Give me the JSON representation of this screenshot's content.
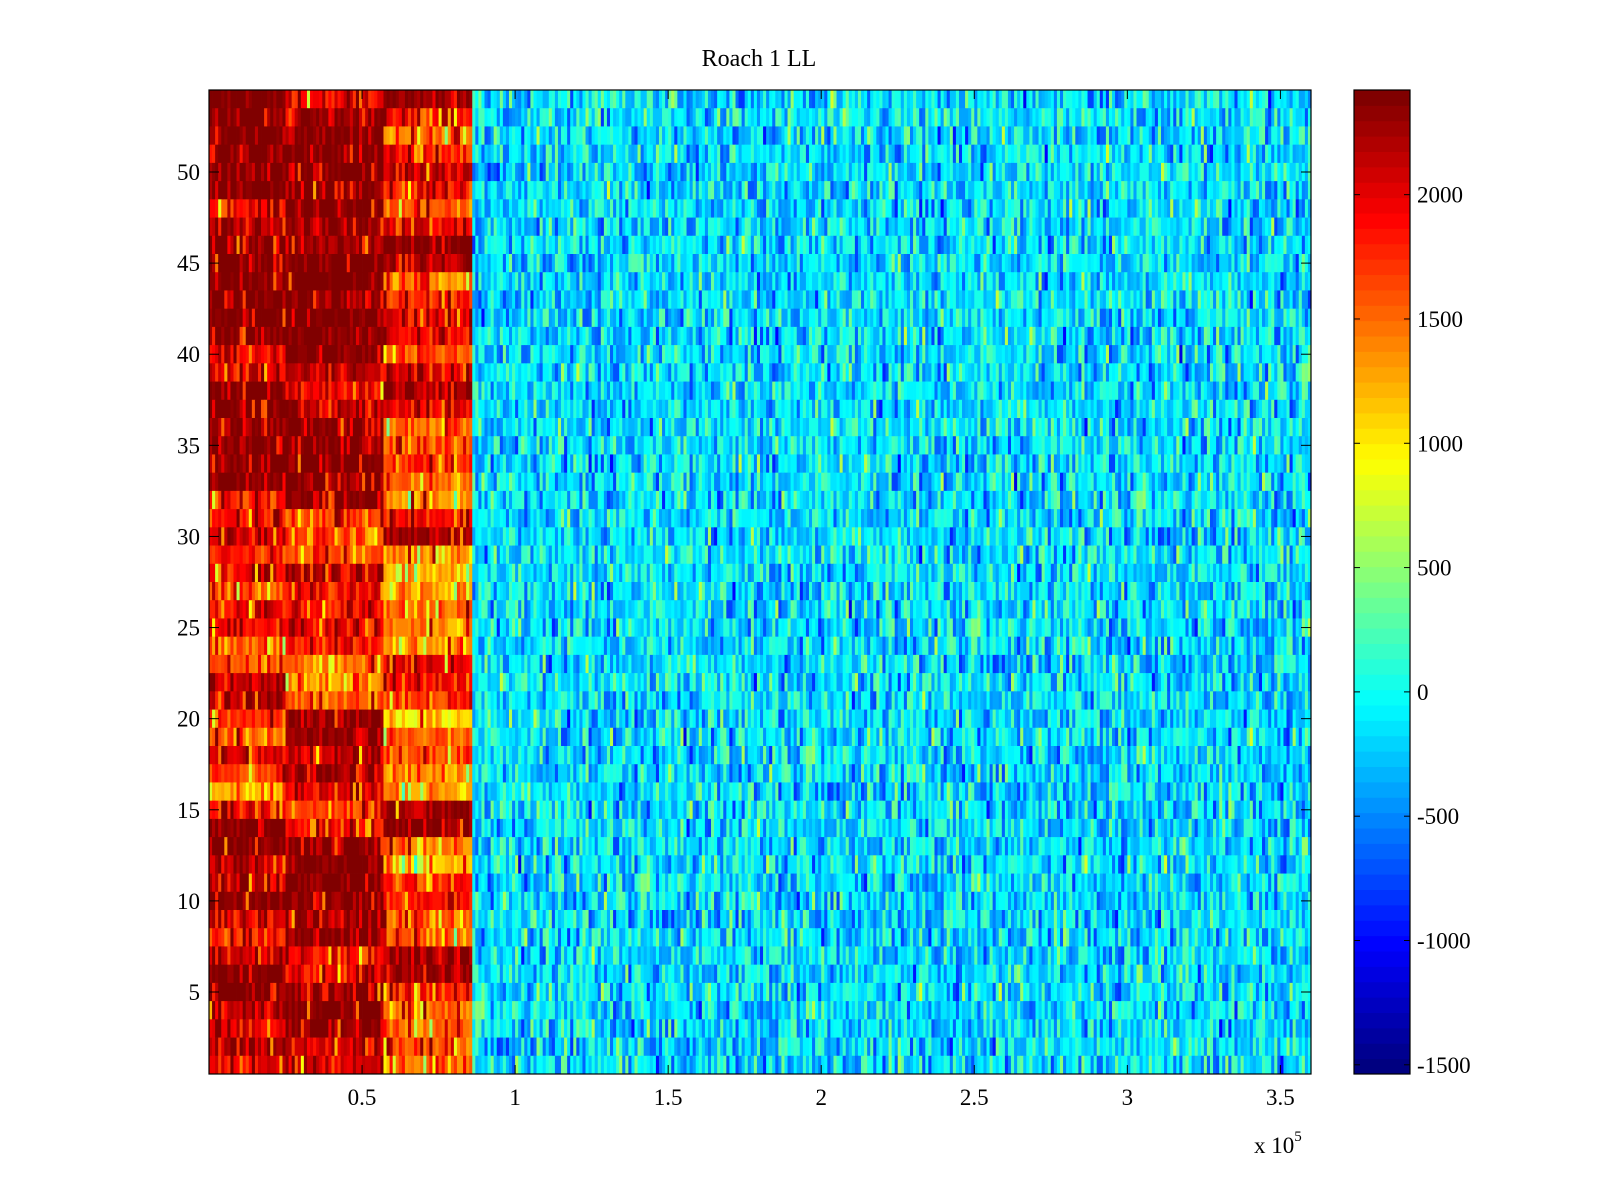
{
  "chart_data": {
    "type": "heatmap",
    "title": "Roach 1 LL",
    "xlabel": "",
    "ylabel": "",
    "x_exponent_label": "x 10",
    "x_exponent": "5",
    "xlim": [
      0,
      360000
    ],
    "ylim": [
      0.5,
      54.5
    ],
    "x_ticks": [
      50000,
      100000,
      150000,
      200000,
      250000,
      300000,
      350000
    ],
    "x_tick_labels": [
      "0.5",
      "1",
      "1.5",
      "2",
      "2.5",
      "3",
      "3.5"
    ],
    "y_ticks": [
      5,
      10,
      15,
      20,
      25,
      30,
      35,
      40,
      45,
      50
    ],
    "y_tick_labels": [
      "5",
      "10",
      "15",
      "20",
      "25",
      "30",
      "35",
      "40",
      "45",
      "50"
    ],
    "colormap": "jet",
    "clim": [
      -1537,
      2421
    ],
    "colorbar_ticks": [
      2000,
      1500,
      1000,
      500,
      0,
      -500,
      -1000,
      -1500
    ],
    "colorbar_tick_labels": [
      "2000",
      "1500",
      "1000",
      "500",
      "0",
      "-500",
      "-1000",
      "-1500"
    ],
    "x_segments": [
      [
        0,
        25500
      ],
      [
        25500,
        57500
      ],
      [
        57500,
        86000
      ],
      [
        86000,
        360000
      ]
    ],
    "row_segment_means_top_to_bottom": [
      [
        2400,
        1900,
        2300,
        -150
      ],
      [
        2400,
        2300,
        1900,
        -150
      ],
      [
        2400,
        2400,
        1400,
        -150
      ],
      [
        2350,
        2400,
        1800,
        -150
      ],
      [
        2400,
        2400,
        2100,
        -150
      ],
      [
        2400,
        2400,
        1800,
        -150
      ],
      [
        1900,
        2400,
        1600,
        -150
      ],
      [
        2200,
        2250,
        2000,
        -150
      ],
      [
        2400,
        2250,
        2400,
        -150
      ],
      [
        2400,
        2400,
        2200,
        -150
      ],
      [
        2400,
        2400,
        1400,
        -150
      ],
      [
        2400,
        2400,
        1800,
        -150
      ],
      [
        2400,
        2400,
        1900,
        -150
      ],
      [
        2400,
        2400,
        1900,
        -150
      ],
      [
        1900,
        2400,
        1600,
        -150
      ],
      [
        2100,
        2100,
        2000,
        -150
      ],
      [
        2400,
        2000,
        2300,
        -150
      ],
      [
        2400,
        2200,
        2000,
        -150
      ],
      [
        2400,
        2400,
        1500,
        -150
      ],
      [
        2350,
        2400,
        1600,
        -150
      ],
      [
        2400,
        2400,
        1800,
        -150
      ],
      [
        2400,
        2350,
        1500,
        -150
      ],
      [
        1800,
        2300,
        1300,
        -150
      ],
      [
        1900,
        1700,
        2000,
        -150
      ],
      [
        2100,
        1700,
        2300,
        -150
      ],
      [
        1900,
        1600,
        1400,
        -150
      ],
      [
        2000,
        2300,
        1200,
        -150
      ],
      [
        1600,
        2000,
        1300,
        -150
      ],
      [
        2000,
        1900,
        1500,
        -150
      ],
      [
        1900,
        2000,
        1400,
        -150
      ],
      [
        1500,
        1900,
        1300,
        -150
      ],
      [
        1600,
        1500,
        2000,
        -150
      ],
      [
        2100,
        1400,
        1900,
        -150
      ],
      [
        2200,
        1600,
        1700,
        -150
      ],
      [
        1800,
        2300,
        1100,
        -150
      ],
      [
        1500,
        2300,
        1600,
        -150
      ],
      [
        2000,
        2100,
        1600,
        -150
      ],
      [
        1700,
        2300,
        1300,
        -150
      ],
      [
        1200,
        2000,
        1300,
        -150
      ],
      [
        1900,
        1600,
        2300,
        -150
      ],
      [
        2400,
        1800,
        2350,
        -150
      ],
      [
        2300,
        2300,
        1500,
        -150
      ],
      [
        2100,
        2400,
        1200,
        -150
      ],
      [
        2100,
        2400,
        1800,
        -150
      ],
      [
        2400,
        2350,
        1900,
        -150
      ],
      [
        2100,
        2300,
        1600,
        -150
      ],
      [
        1700,
        2300,
        1500,
        -150
      ],
      [
        2100,
        1900,
        2200,
        -150
      ],
      [
        2400,
        2000,
        2300,
        -150
      ],
      [
        2400,
        2300,
        1800,
        -150
      ],
      [
        2100,
        2400,
        1500,
        -150
      ],
      [
        2000,
        2300,
        1500,
        -150
      ],
      [
        2200,
        2100,
        1600,
        -150
      ],
      [
        1900,
        2100,
        1400,
        -150
      ]
    ],
    "noise_std_left": 450,
    "noise_std_right": 320,
    "columns": 360,
    "grid": false
  }
}
